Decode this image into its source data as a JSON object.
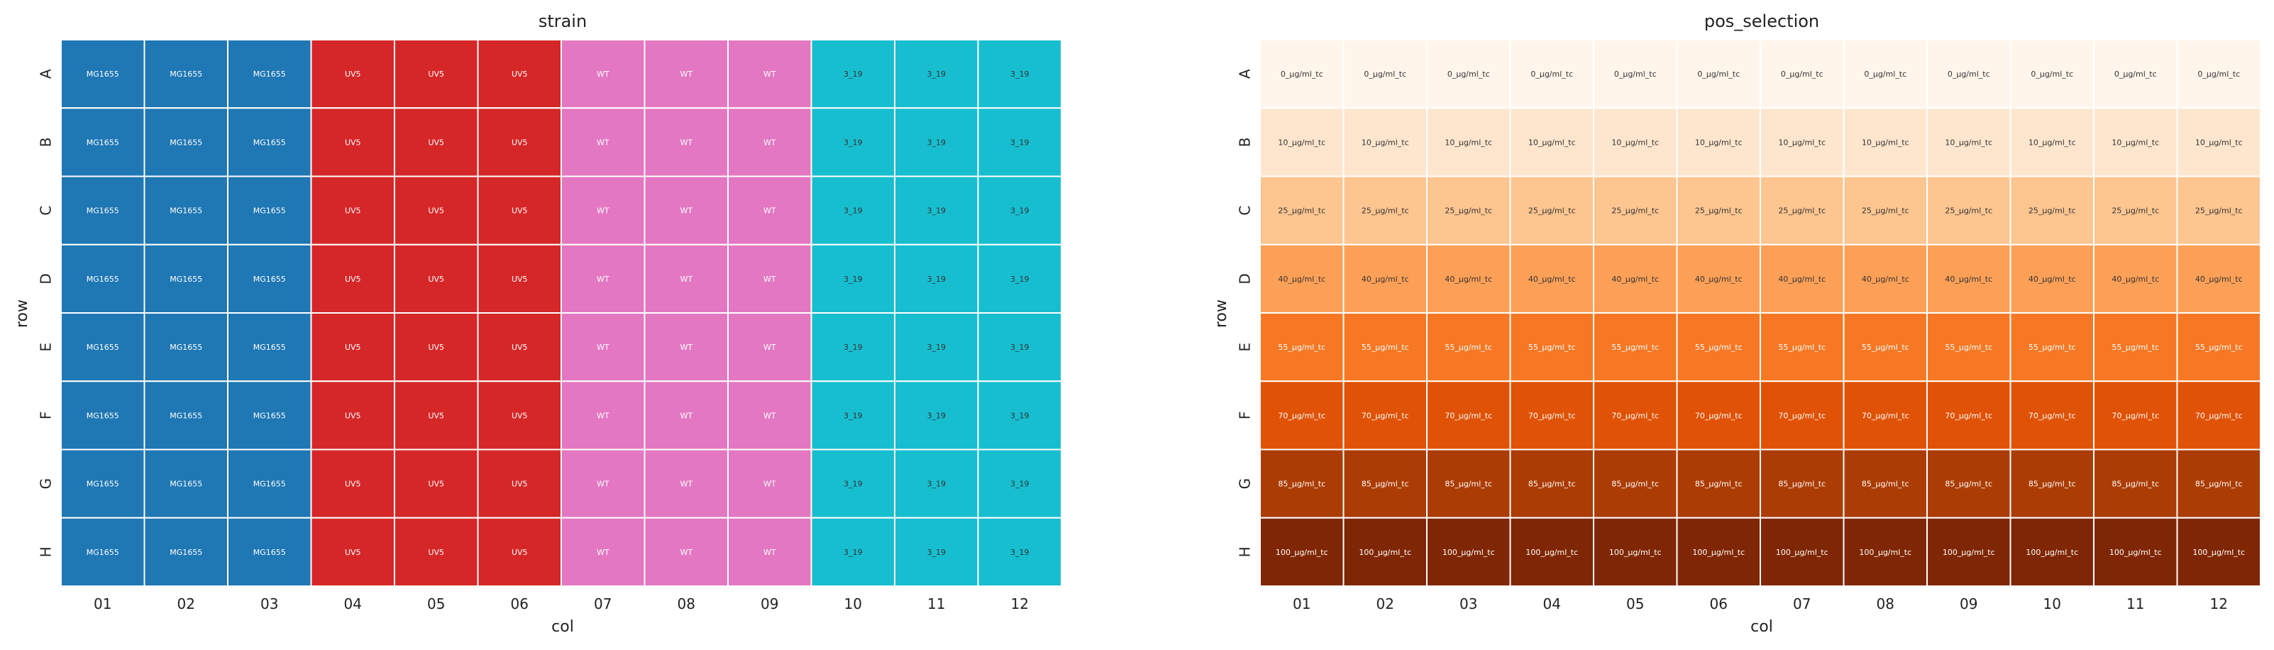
{
  "chart_data": [
    {
      "type": "heatmap",
      "title": "strain",
      "xlabel": "col",
      "ylabel": "row",
      "x": [
        "01",
        "02",
        "03",
        "04",
        "05",
        "06",
        "07",
        "08",
        "09",
        "10",
        "11",
        "12"
      ],
      "y": [
        "A",
        "B",
        "C",
        "D",
        "E",
        "F",
        "G",
        "H"
      ],
      "column_values": [
        "MG1655",
        "MG1655",
        "MG1655",
        "UV5",
        "UV5",
        "UV5",
        "WT",
        "WT",
        "WT",
        "3_19",
        "3_19",
        "3_19"
      ],
      "category_colors": {
        "MG1655": "#1f77b4",
        "UV5": "#d62728",
        "WT": "#e377c2",
        "3_19": "#17becf"
      },
      "label_colors": {
        "MG1655": "#ffffff",
        "UV5": "#ffffff",
        "WT": "#ffffff",
        "3_19": "#333333"
      }
    },
    {
      "type": "heatmap",
      "title": "pos_selection",
      "xlabel": "col",
      "ylabel": "row",
      "x": [
        "01",
        "02",
        "03",
        "04",
        "05",
        "06",
        "07",
        "08",
        "09",
        "10",
        "11",
        "12"
      ],
      "y": [
        "A",
        "B",
        "C",
        "D",
        "E",
        "F",
        "G",
        "H"
      ],
      "row_values": [
        "0_µg/ml_tc",
        "10_µg/ml_tc",
        "25_µg/ml_tc",
        "40_µg/ml_tc",
        "55_µg/ml_tc",
        "70_µg/ml_tc",
        "85_µg/ml_tc",
        "100_µg/ml_tc"
      ],
      "row_colors": [
        "#fff5eb",
        "#fee6ce",
        "#fdc590",
        "#fda057",
        "#f67824",
        "#e05206",
        "#ab3c03",
        "#7f2704"
      ],
      "label_colors": [
        "#333333",
        "#333333",
        "#333333",
        "#333333",
        "#ffffff",
        "#ffffff",
        "#ffffff",
        "#ffffff"
      ]
    }
  ]
}
